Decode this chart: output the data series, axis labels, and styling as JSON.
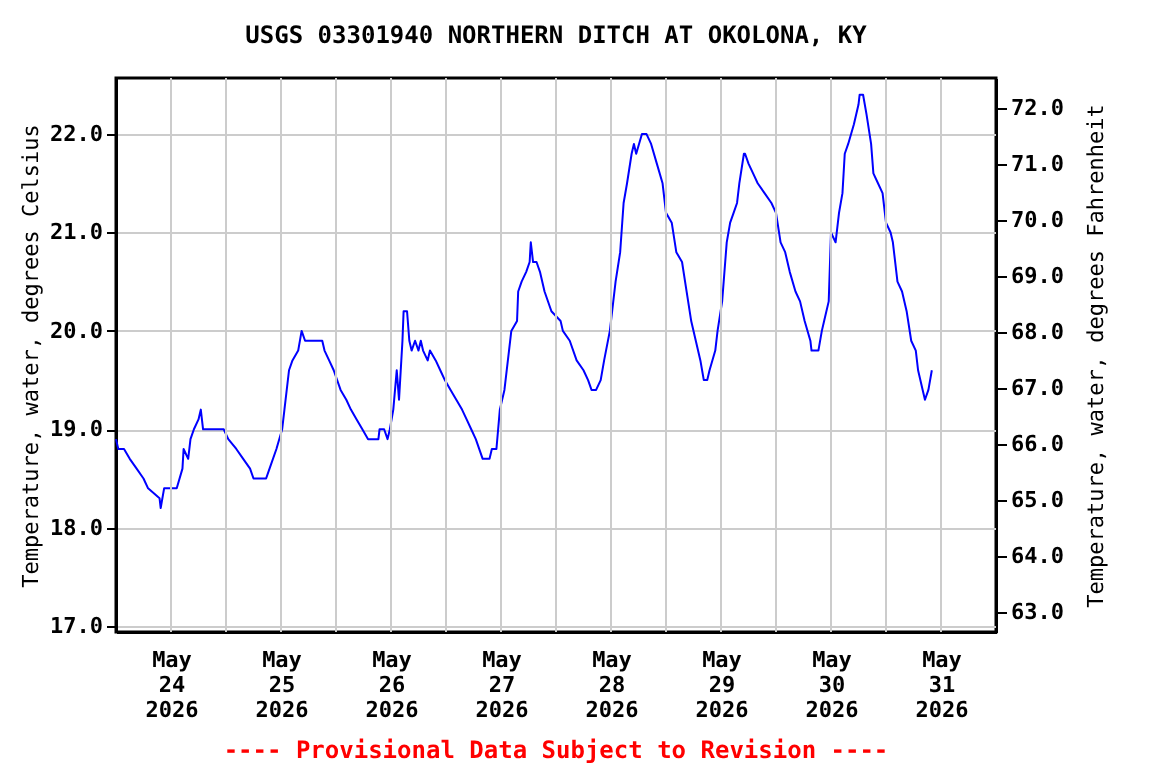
{
  "chart_data": {
    "type": "line",
    "title": "USGS 03301940 NORTHERN DITCH AT OKOLONA, KY",
    "ylabel": "Temperature, water, degrees Celsius",
    "y2label": "Temperature, water, degrees Fahrenheit",
    "annotations": [
      "---- Provisional Data Subject to Revision ----"
    ],
    "x": [
      "2026-05-24T00:00",
      "2026-05-24T00:30",
      "2026-05-24T01:45",
      "2026-05-24T03:00",
      "2026-05-24T04:30",
      "2026-05-24T06:00",
      "2026-05-24T07:00",
      "2026-05-24T09:30",
      "2026-05-24T09:45",
      "2026-05-24T10:30",
      "2026-05-24T13:15",
      "2026-05-24T14:30",
      "2026-05-24T14:45",
      "2026-05-24T15:45",
      "2026-05-24T16:15",
      "2026-05-24T17:00",
      "2026-05-24T18:00",
      "2026-05-24T18:30",
      "2026-05-24T19:00",
      "2026-05-24T23:30",
      "2026-05-25T00:30",
      "2026-05-25T02:15",
      "2026-05-25T03:45",
      "2026-05-25T05:15",
      "2026-05-25T06:00",
      "2026-05-25T08:45",
      "2026-05-25T09:30",
      "2026-05-25T11:00",
      "2026-05-25T12:15",
      "2026-05-25T12:45",
      "2026-05-25T13:45",
      "2026-05-25T14:30",
      "2026-05-25T15:45",
      "2026-05-25T16:30",
      "2026-05-25T17:15",
      "2026-05-25T21:00",
      "2026-05-25T21:30",
      "2026-05-25T22:30",
      "2026-05-25T23:30",
      "2026-05-26T01:00",
      "2026-05-26T02:15",
      "2026-05-26T03:15",
      "2026-05-26T04:30",
      "2026-05-26T05:45",
      "2026-05-26T07:00",
      "2026-05-26T09:15",
      "2026-05-26T09:30",
      "2026-05-26T10:30",
      "2026-05-26T11:15",
      "2026-05-26T11:45",
      "2026-05-26T12:30",
      "2026-05-26T13:15",
      "2026-05-26T13:45",
      "2026-05-26T14:30",
      "2026-05-26T14:45",
      "2026-05-26T15:30",
      "2026-05-26T16:00",
      "2026-05-26T16:30",
      "2026-05-26T17:15",
      "2026-05-26T18:00",
      "2026-05-26T18:30",
      "2026-05-26T19:00",
      "2026-05-26T20:00",
      "2026-05-26T20:30",
      "2026-05-26T21:45",
      "2026-05-26T22:45",
      "2026-05-26T23:45",
      "2026-05-27T01:00",
      "2026-05-27T02:15",
      "2026-05-27T03:30",
      "2026-05-27T04:30",
      "2026-05-27T05:30",
      "2026-05-27T06:30",
      "2026-05-27T08:00",
      "2026-05-27T09:30",
      "2026-05-27T10:00",
      "2026-05-27T11:00",
      "2026-05-27T11:45",
      "2026-05-27T12:45",
      "2026-05-27T13:45",
      "2026-05-27T14:15",
      "2026-05-27T15:30",
      "2026-05-27T15:45",
      "2026-05-27T16:30",
      "2026-05-27T17:30",
      "2026-05-27T18:15",
      "2026-05-27T18:30",
      "2026-05-27T19:00",
      "2026-05-27T19:45",
      "2026-05-27T20:30",
      "2026-05-27T21:30",
      "2026-05-27T23:00",
      "2026-05-28T01:00",
      "2026-05-28T01:30",
      "2026-05-28T03:00",
      "2026-05-28T04:30",
      "2026-05-28T06:00",
      "2026-05-28T07:00",
      "2026-05-28T07:45",
      "2026-05-28T08:45",
      "2026-05-28T09:45",
      "2026-05-28T10:30",
      "2026-05-28T11:45",
      "2026-05-28T13:00",
      "2026-05-28T14:00",
      "2026-05-28T14:45",
      "2026-05-28T15:30",
      "2026-05-28T16:30",
      "2026-05-28T17:00",
      "2026-05-28T17:30",
      "2026-05-28T18:45",
      "2026-05-28T19:45",
      "2026-05-28T20:45",
      "2026-05-28T22:00",
      "2026-05-28T23:15",
      "2026-05-29T00:00",
      "2026-05-29T01:15",
      "2026-05-29T02:15",
      "2026-05-29T03:30",
      "2026-05-29T04:30",
      "2026-05-29T05:30",
      "2026-05-29T06:30",
      "2026-05-29T07:30",
      "2026-05-29T08:15",
      "2026-05-29T09:00",
      "2026-05-29T09:30",
      "2026-05-29T10:45",
      "2026-05-29T11:15",
      "2026-05-29T12:15",
      "2026-05-29T13:15",
      "2026-05-29T14:00",
      "2026-05-29T14:45",
      "2026-05-29T15:30",
      "2026-05-29T16:00",
      "2026-05-29T17:00",
      "2026-05-29T17:15",
      "2026-05-29T18:00",
      "2026-05-29T19:00",
      "2026-05-29T20:00",
      "2026-05-29T21:30",
      "2026-05-29T23:00",
      "2026-05-30T00:00",
      "2026-05-30T01:00",
      "2026-05-30T02:00",
      "2026-05-30T03:00",
      "2026-05-30T04:15",
      "2026-05-30T05:15",
      "2026-05-30T06:15",
      "2026-05-30T07:30",
      "2026-05-30T07:45",
      "2026-05-30T09:15",
      "2026-05-30T10:00",
      "2026-05-30T10:30",
      "2026-05-30T11:30",
      "2026-05-30T12:00",
      "2026-05-30T13:00",
      "2026-05-30T13:45",
      "2026-05-30T14:30",
      "2026-05-30T15:00",
      "2026-05-30T15:45",
      "2026-05-30T17:00",
      "2026-05-30T18:00",
      "2026-05-30T18:15",
      "2026-05-30T19:00",
      "2026-05-30T19:45",
      "2026-05-30T20:45",
      "2026-05-30T21:15",
      "2026-05-30T22:15",
      "2026-05-30T23:15",
      "2026-05-31T00:00",
      "2026-05-31T01:00",
      "2026-05-31T01:30",
      "2026-05-31T02:30",
      "2026-05-31T03:30",
      "2026-05-31T04:30",
      "2026-05-31T05:30",
      "2026-05-31T06:30",
      "2026-05-31T07:00",
      "2026-05-31T08:00",
      "2026-05-31T08:30",
      "2026-05-31T09:15",
      "2026-05-31T10:00"
    ],
    "series": [
      {
        "color": "#0000ff",
        "values": [
          18.9,
          18.8,
          18.8,
          18.7,
          18.6,
          18.5,
          18.4,
          18.3,
          18.2,
          18.4,
          18.4,
          18.6,
          18.8,
          18.7,
          18.9,
          19.0,
          19.1,
          19.2,
          19.0,
          19.0,
          18.9,
          18.8,
          18.7,
          18.6,
          18.5,
          18.5,
          18.6,
          18.8,
          19.0,
          19.2,
          19.6,
          19.7,
          19.8,
          20.0,
          19.9,
          19.9,
          19.8,
          19.7,
          19.6,
          19.4,
          19.3,
          19.2,
          19.1,
          19.0,
          18.9,
          18.9,
          19.0,
          19.0,
          18.9,
          19.0,
          19.2,
          19.6,
          19.3,
          19.9,
          20.2,
          20.2,
          19.9,
          19.8,
          19.9,
          19.8,
          19.9,
          19.8,
          19.7,
          19.8,
          19.7,
          19.6,
          19.5,
          19.4,
          19.3,
          19.2,
          19.1,
          19.0,
          18.9,
          18.7,
          18.7,
          18.8,
          18.8,
          19.2,
          19.4,
          19.8,
          20.0,
          20.1,
          20.4,
          20.5,
          20.6,
          20.7,
          20.9,
          20.7,
          20.7,
          20.6,
          20.4,
          20.2,
          20.1,
          20.0,
          19.9,
          19.7,
          19.6,
          19.5,
          19.4,
          19.4,
          19.5,
          19.7,
          20.0,
          20.5,
          20.8,
          21.3,
          21.5,
          21.8,
          21.9,
          21.8,
          22.0,
          22.0,
          21.9,
          21.7,
          21.5,
          21.2,
          21.1,
          20.8,
          20.7,
          20.4,
          20.1,
          19.9,
          19.7,
          19.5,
          19.5,
          19.6,
          19.8,
          20.0,
          20.3,
          20.9,
          21.1,
          21.2,
          21.3,
          21.5,
          21.8,
          21.8,
          21.7,
          21.6,
          21.5,
          21.4,
          21.3,
          21.2,
          20.9,
          20.8,
          20.6,
          20.4,
          20.3,
          20.1,
          19.9,
          19.8,
          19.8,
          20.0,
          20.1,
          20.3,
          21.0,
          20.9,
          21.2,
          21.4,
          21.8,
          21.9,
          22.1,
          22.3,
          22.4,
          22.4,
          22.2,
          21.9,
          21.6,
          21.5,
          21.4,
          21.1,
          21.0,
          20.9,
          20.5,
          20.4,
          20.2,
          19.9,
          19.8,
          19.6,
          19.4,
          19.3,
          19.4,
          19.6
        ]
      }
    ],
    "xlim": [
      "2026-05-24T00:00",
      "2026-06-01T00:00"
    ],
    "xticks": [
      {
        "value": "2026-05-24T12:00",
        "label": "May 24 2026"
      },
      {
        "value": "2026-05-25T12:00",
        "label": "May 25 2026"
      },
      {
        "value": "2026-05-26T12:00",
        "label": "May 26 2026"
      },
      {
        "value": "2026-05-27T12:00",
        "label": "May 27 2026"
      },
      {
        "value": "2026-05-28T12:00",
        "label": "May 28 2026"
      },
      {
        "value": "2026-05-29T12:00",
        "label": "May 29 2026"
      },
      {
        "value": "2026-05-30T12:00",
        "label": "May 30 2026"
      },
      {
        "value": "2026-05-31T12:00",
        "label": "May 31 2026"
      },
      {
        "value": "2026-05-25T00:00",
        "label": null
      },
      {
        "value": "2026-05-26T00:00",
        "label": null
      },
      {
        "value": "2026-05-27T00:00",
        "label": null
      },
      {
        "value": "2026-05-28T00:00",
        "label": null
      },
      {
        "value": "2026-05-29T00:00",
        "label": null
      },
      {
        "value": "2026-05-30T00:00",
        "label": null
      },
      {
        "value": "2026-05-31T00:00",
        "label": null
      }
    ],
    "ylim": [
      16.94,
      22.57
    ],
    "yticks": [
      {
        "value": 17,
        "label": "17.0"
      },
      {
        "value": 18,
        "label": "18.0"
      },
      {
        "value": 19,
        "label": "19.0"
      },
      {
        "value": 20,
        "label": "20.0"
      },
      {
        "value": 21,
        "label": "21.0"
      },
      {
        "value": 22,
        "label": "22.0"
      }
    ],
    "y2lim": [
      62.64,
      72.54
    ],
    "y2ticks": [
      {
        "value": 63,
        "label": "63.0"
      },
      {
        "value": 64,
        "label": "64.0"
      },
      {
        "value": 65,
        "label": "65.0"
      },
      {
        "value": 66,
        "label": "66.0"
      },
      {
        "value": 67,
        "label": "67.0"
      },
      {
        "value": 68,
        "label": "68.0"
      },
      {
        "value": 69,
        "label": "69.0"
      },
      {
        "value": 70,
        "label": "70.0"
      },
      {
        "value": 71,
        "label": "71.0"
      },
      {
        "value": 72,
        "label": "72.0"
      }
    ],
    "grid": true
  }
}
